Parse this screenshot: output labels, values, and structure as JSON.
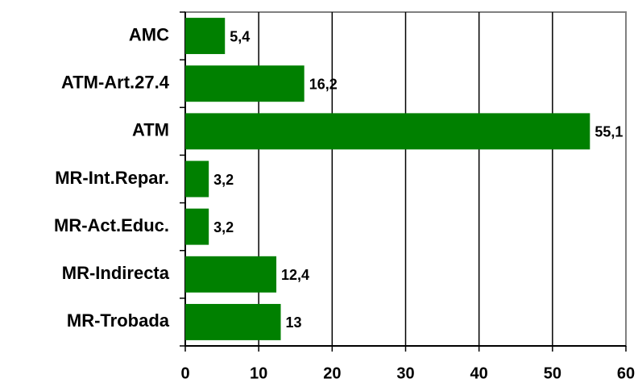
{
  "chart_data": {
    "type": "barh",
    "categories": [
      "AMC",
      "ATM-Art.27.4",
      "ATM",
      "MR-Int.Repar.",
      "MR-Act.Educ.",
      "MR-Indirecta",
      "MR-Trobada"
    ],
    "values": [
      5.4,
      16.2,
      55.1,
      3.2,
      3.2,
      12.4,
      13
    ],
    "value_labels": [
      "5,4",
      "16,2",
      "55,1",
      "3,2",
      "3,2",
      "12,4",
      "13"
    ],
    "color": "#008000",
    "xlim": [
      0,
      60
    ],
    "xticks": [
      0,
      10,
      20,
      30,
      40,
      50,
      60
    ],
    "grid": true
  }
}
